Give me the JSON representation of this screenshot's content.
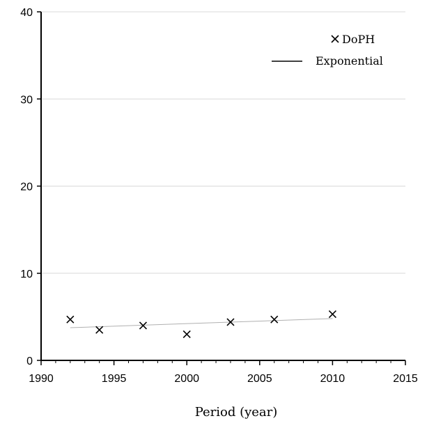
{
  "chart_data": {
    "type": "scatter",
    "title": "",
    "xlabel": "Period (year)",
    "ylabel": "",
    "xlim": [
      1990,
      2015
    ],
    "ylim": [
      0,
      40
    ],
    "xticks": [
      1990,
      1995,
      2000,
      2005,
      2010,
      2015
    ],
    "yticks": [
      0,
      10,
      20,
      30,
      40
    ],
    "grid": "horizontal",
    "legend_position": "top-right",
    "series": [
      {
        "name": "DoPH",
        "marker": "x",
        "x": [
          1992,
          1994,
          1997,
          2000,
          2003,
          2006,
          2010
        ],
        "y": [
          4.7,
          3.5,
          4.0,
          3.0,
          4.4,
          4.7,
          5.3
        ]
      }
    ],
    "trendline": {
      "name": "Exponential",
      "x_range": [
        1992,
        2010
      ],
      "y_start": 3.75,
      "y_end": 4.8
    },
    "colors": {
      "marker": "#000000",
      "axis": "#000000",
      "grid": "#d9d9d9",
      "trend": "#b0b0b0"
    }
  }
}
